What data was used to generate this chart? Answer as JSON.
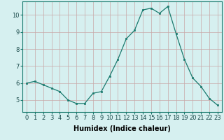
{
  "x": [
    0,
    1,
    2,
    3,
    4,
    5,
    6,
    7,
    8,
    9,
    10,
    11,
    12,
    13,
    14,
    15,
    16,
    17,
    18,
    19,
    20,
    21,
    22,
    23
  ],
  "y": [
    6.0,
    6.1,
    5.9,
    5.7,
    5.5,
    5.0,
    4.8,
    4.8,
    5.4,
    5.5,
    6.4,
    7.4,
    8.6,
    9.1,
    10.3,
    10.4,
    10.1,
    10.5,
    8.9,
    7.4,
    6.3,
    5.8,
    5.1,
    4.7
  ],
  "xlabel": "Humidex (Indice chaleur)",
  "ylabel_ticks": [
    5,
    6,
    7,
    8,
    9,
    10
  ],
  "ylim": [
    4.3,
    10.8
  ],
  "xlim": [
    -0.5,
    23.5
  ],
  "line_color": "#1a7a6e",
  "marker_color": "#1a7a6e",
  "bg_color": "#d6f0f0",
  "grid_color": "#c8a8a8",
  "xlabel_fontsize": 7,
  "tick_fontsize": 6,
  "title": ""
}
